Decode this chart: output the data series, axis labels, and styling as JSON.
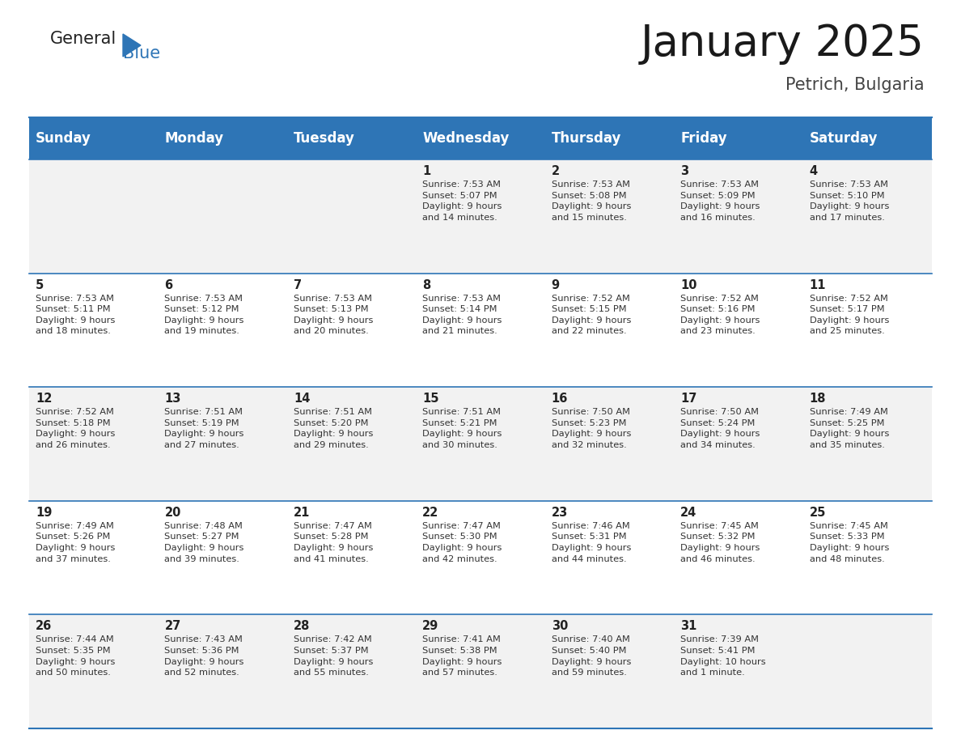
{
  "title": "January 2025",
  "subtitle": "Petrich, Bulgaria",
  "header_color": "#2E75B6",
  "header_text_color": "#FFFFFF",
  "background_color": "#FFFFFF",
  "cell_bg_even": "#F2F2F2",
  "cell_bg_odd": "#FFFFFF",
  "border_color": "#2E75B6",
  "day_headers": [
    "Sunday",
    "Monday",
    "Tuesday",
    "Wednesday",
    "Thursday",
    "Friday",
    "Saturday"
  ],
  "title_fontsize": 38,
  "subtitle_fontsize": 15,
  "header_fontsize": 12,
  "day_num_fontsize": 10.5,
  "cell_fontsize": 8.2,
  "logo_general_color": "#222222",
  "logo_blue_color": "#2E75B6",
  "logo_triangle_color": "#2E75B6",
  "weeks": [
    [
      {
        "day": "",
        "sunrise": "",
        "sunset": "",
        "daylight": ""
      },
      {
        "day": "",
        "sunrise": "",
        "sunset": "",
        "daylight": ""
      },
      {
        "day": "",
        "sunrise": "",
        "sunset": "",
        "daylight": ""
      },
      {
        "day": "1",
        "sunrise": "7:53 AM",
        "sunset": "5:07 PM",
        "daylight": "9 hours\nand 14 minutes."
      },
      {
        "day": "2",
        "sunrise": "7:53 AM",
        "sunset": "5:08 PM",
        "daylight": "9 hours\nand 15 minutes."
      },
      {
        "day": "3",
        "sunrise": "7:53 AM",
        "sunset": "5:09 PM",
        "daylight": "9 hours\nand 16 minutes."
      },
      {
        "day": "4",
        "sunrise": "7:53 AM",
        "sunset": "5:10 PM",
        "daylight": "9 hours\nand 17 minutes."
      }
    ],
    [
      {
        "day": "5",
        "sunrise": "7:53 AM",
        "sunset": "5:11 PM",
        "daylight": "9 hours\nand 18 minutes."
      },
      {
        "day": "6",
        "sunrise": "7:53 AM",
        "sunset": "5:12 PM",
        "daylight": "9 hours\nand 19 minutes."
      },
      {
        "day": "7",
        "sunrise": "7:53 AM",
        "sunset": "5:13 PM",
        "daylight": "9 hours\nand 20 minutes."
      },
      {
        "day": "8",
        "sunrise": "7:53 AM",
        "sunset": "5:14 PM",
        "daylight": "9 hours\nand 21 minutes."
      },
      {
        "day": "9",
        "sunrise": "7:52 AM",
        "sunset": "5:15 PM",
        "daylight": "9 hours\nand 22 minutes."
      },
      {
        "day": "10",
        "sunrise": "7:52 AM",
        "sunset": "5:16 PM",
        "daylight": "9 hours\nand 23 minutes."
      },
      {
        "day": "11",
        "sunrise": "7:52 AM",
        "sunset": "5:17 PM",
        "daylight": "9 hours\nand 25 minutes."
      }
    ],
    [
      {
        "day": "12",
        "sunrise": "7:52 AM",
        "sunset": "5:18 PM",
        "daylight": "9 hours\nand 26 minutes."
      },
      {
        "day": "13",
        "sunrise": "7:51 AM",
        "sunset": "5:19 PM",
        "daylight": "9 hours\nand 27 minutes."
      },
      {
        "day": "14",
        "sunrise": "7:51 AM",
        "sunset": "5:20 PM",
        "daylight": "9 hours\nand 29 minutes."
      },
      {
        "day": "15",
        "sunrise": "7:51 AM",
        "sunset": "5:21 PM",
        "daylight": "9 hours\nand 30 minutes."
      },
      {
        "day": "16",
        "sunrise": "7:50 AM",
        "sunset": "5:23 PM",
        "daylight": "9 hours\nand 32 minutes."
      },
      {
        "day": "17",
        "sunrise": "7:50 AM",
        "sunset": "5:24 PM",
        "daylight": "9 hours\nand 34 minutes."
      },
      {
        "day": "18",
        "sunrise": "7:49 AM",
        "sunset": "5:25 PM",
        "daylight": "9 hours\nand 35 minutes."
      }
    ],
    [
      {
        "day": "19",
        "sunrise": "7:49 AM",
        "sunset": "5:26 PM",
        "daylight": "9 hours\nand 37 minutes."
      },
      {
        "day": "20",
        "sunrise": "7:48 AM",
        "sunset": "5:27 PM",
        "daylight": "9 hours\nand 39 minutes."
      },
      {
        "day": "21",
        "sunrise": "7:47 AM",
        "sunset": "5:28 PM",
        "daylight": "9 hours\nand 41 minutes."
      },
      {
        "day": "22",
        "sunrise": "7:47 AM",
        "sunset": "5:30 PM",
        "daylight": "9 hours\nand 42 minutes."
      },
      {
        "day": "23",
        "sunrise": "7:46 AM",
        "sunset": "5:31 PM",
        "daylight": "9 hours\nand 44 minutes."
      },
      {
        "day": "24",
        "sunrise": "7:45 AM",
        "sunset": "5:32 PM",
        "daylight": "9 hours\nand 46 minutes."
      },
      {
        "day": "25",
        "sunrise": "7:45 AM",
        "sunset": "5:33 PM",
        "daylight": "9 hours\nand 48 minutes."
      }
    ],
    [
      {
        "day": "26",
        "sunrise": "7:44 AM",
        "sunset": "5:35 PM",
        "daylight": "9 hours\nand 50 minutes."
      },
      {
        "day": "27",
        "sunrise": "7:43 AM",
        "sunset": "5:36 PM",
        "daylight": "9 hours\nand 52 minutes."
      },
      {
        "day": "28",
        "sunrise": "7:42 AM",
        "sunset": "5:37 PM",
        "daylight": "9 hours\nand 55 minutes."
      },
      {
        "day": "29",
        "sunrise": "7:41 AM",
        "sunset": "5:38 PM",
        "daylight": "9 hours\nand 57 minutes."
      },
      {
        "day": "30",
        "sunrise": "7:40 AM",
        "sunset": "5:40 PM",
        "daylight": "9 hours\nand 59 minutes."
      },
      {
        "day": "31",
        "sunrise": "7:39 AM",
        "sunset": "5:41 PM",
        "daylight": "10 hours\nand 1 minute."
      },
      {
        "day": "",
        "sunrise": "",
        "sunset": "",
        "daylight": ""
      }
    ]
  ]
}
